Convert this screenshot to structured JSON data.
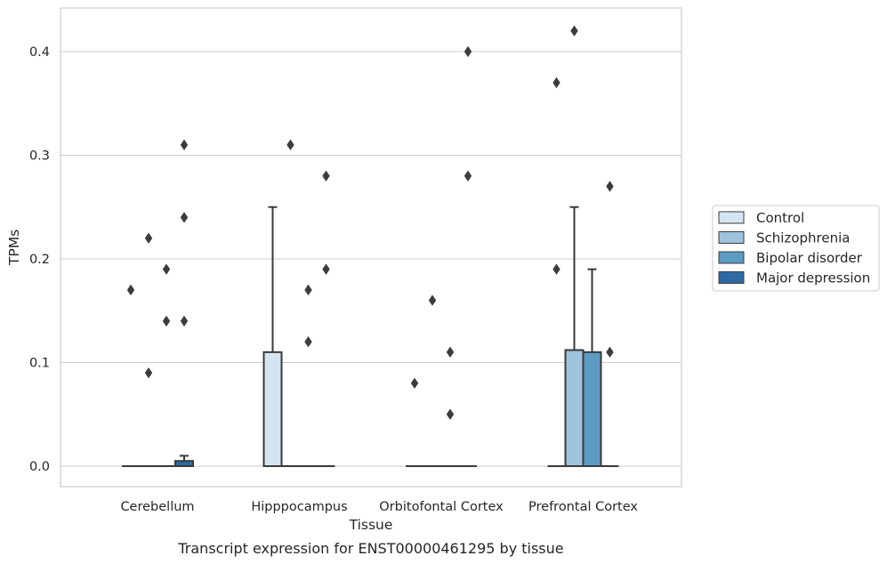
{
  "chart_data": {
    "type": "box",
    "xlabel": "Tissue",
    "ylabel": "TPMs",
    "caption": "Transcript expression for ENST00000461295 by tissue",
    "ylim": [
      -0.02,
      0.443
    ],
    "yticks": [
      0.0,
      0.1,
      0.2,
      0.3,
      0.4
    ],
    "ytick_labels": [
      "0.0",
      "0.1",
      "0.2",
      "0.3",
      "0.4"
    ],
    "grid": "horizontal",
    "legend_position": "right",
    "categories": [
      "Cerebellum",
      "Hipppocampus",
      "Orbitofontal Cortex",
      "Prefrontal Cortex"
    ],
    "series": [
      {
        "name": "Control",
        "color": "#d5e4f1",
        "boxes": [
          {
            "q1": 0,
            "median": 0,
            "q3": 0,
            "whisker_low": 0,
            "whisker_high": 0,
            "outliers": [
              0.17
            ]
          },
          {
            "q1": 0,
            "median": 0,
            "q3": 0.11,
            "whisker_low": 0,
            "whisker_high": 0.25,
            "outliers": []
          },
          {
            "q1": 0,
            "median": 0,
            "q3": 0,
            "whisker_low": 0,
            "whisker_high": 0,
            "outliers": [
              0.08
            ]
          },
          {
            "q1": 0,
            "median": 0,
            "q3": 0,
            "whisker_low": 0,
            "whisker_high": 0,
            "outliers": [
              0.37,
              0.19
            ]
          }
        ]
      },
      {
        "name": "Schizophrenia",
        "color": "#9ec3dc",
        "boxes": [
          {
            "q1": 0,
            "median": 0,
            "q3": 0,
            "whisker_low": 0,
            "whisker_high": 0,
            "outliers": [
              0.22,
              0.09
            ]
          },
          {
            "q1": 0,
            "median": 0,
            "q3": 0,
            "whisker_low": 0,
            "whisker_high": 0,
            "outliers": [
              0.31
            ]
          },
          {
            "q1": 0,
            "median": 0,
            "q3": 0,
            "whisker_low": 0,
            "whisker_high": 0,
            "outliers": [
              0.16
            ]
          },
          {
            "q1": 0,
            "median": 0,
            "q3": 0.112,
            "whisker_low": 0,
            "whisker_high": 0.25,
            "outliers": [
              0.42
            ]
          }
        ]
      },
      {
        "name": "Bipolar disorder",
        "color": "#5c9bc4",
        "boxes": [
          {
            "q1": 0,
            "median": 0,
            "q3": 0,
            "whisker_low": 0,
            "whisker_high": 0,
            "outliers": [
              0.19,
              0.14
            ]
          },
          {
            "q1": 0,
            "median": 0,
            "q3": 0,
            "whisker_low": 0,
            "whisker_high": 0,
            "outliers": [
              0.17,
              0.12
            ]
          },
          {
            "q1": 0,
            "median": 0,
            "q3": 0,
            "whisker_low": 0,
            "whisker_high": 0,
            "outliers": [
              0.11,
              0.05
            ]
          },
          {
            "q1": 0,
            "median": 0,
            "q3": 0.11,
            "whisker_low": 0,
            "whisker_high": 0.19,
            "outliers": []
          }
        ]
      },
      {
        "name": "Major depression",
        "color": "#2e6aa3",
        "boxes": [
          {
            "q1": 0,
            "median": 0,
            "q3": 0.005,
            "whisker_low": 0,
            "whisker_high": 0.01,
            "outliers": [
              0.31,
              0.24,
              0.14
            ]
          },
          {
            "q1": 0,
            "median": 0,
            "q3": 0,
            "whisker_low": 0,
            "whisker_high": 0,
            "outliers": [
              0.28,
              0.19
            ]
          },
          {
            "q1": 0,
            "median": 0,
            "q3": 0,
            "whisker_low": 0,
            "whisker_high": 0,
            "outliers": [
              0.4,
              0.28
            ]
          },
          {
            "q1": 0,
            "median": 0,
            "q3": 0,
            "whisker_low": 0,
            "whisker_high": 0,
            "outliers": [
              0.27,
              0.11
            ]
          }
        ]
      }
    ]
  }
}
